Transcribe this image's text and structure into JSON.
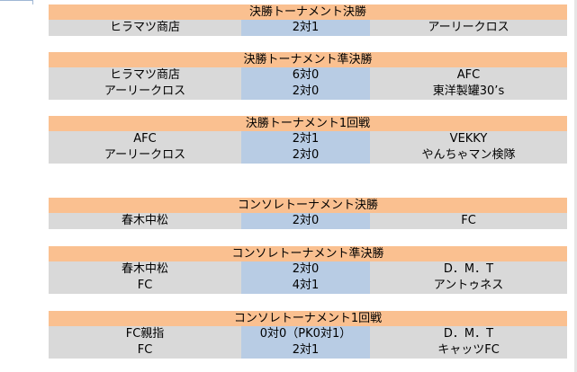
{
  "sections": [
    {
      "header": "決勝トーナメント決勝",
      "rows": [
        {
          "team1": "ヒラマツ商店",
          "score": "2対1",
          "team2": "アーリークロス"
        }
      ]
    },
    {
      "header": "決勝トーナメント準決勝",
      "rows": [
        {
          "team1": "ヒラマツ商店",
          "score": "6対0",
          "team2": "AFC"
        },
        {
          "team1": "アーリークロス",
          "score": "2対0",
          "team2": "東洋製罐30’s"
        }
      ]
    },
    {
      "header": "決勝トーナメント1回戦",
      "rows": [
        {
          "team1": "AFC",
          "score": "2対1",
          "team2": "VEKKY"
        },
        {
          "team1": "アーリークロス",
          "score": "2対0",
          "team2": "やんちゃマン検隊"
        }
      ]
    },
    {
      "header": "コンソレトーナメント決勝",
      "rows": [
        {
          "team1": "春木中松",
          "score": "2対0",
          "team2": "FC"
        }
      ]
    },
    {
      "header": "コンソレトーナメント準決勝",
      "rows": [
        {
          "team1": "春木中松",
          "score": "2対0",
          "team2": "D．M．T"
        },
        {
          "team1": "FC",
          "score": "4対1",
          "team2": "アントゥネス"
        }
      ]
    },
    {
      "header": "コンソレトーナメント1回戦",
      "rows": [
        {
          "team1": "FC親指",
          "score": "0対0（PK0対1）",
          "team2": "D．M．T"
        },
        {
          "team1": "FC",
          "score": "2対1",
          "team2": "キャッツFC"
        }
      ]
    }
  ]
}
